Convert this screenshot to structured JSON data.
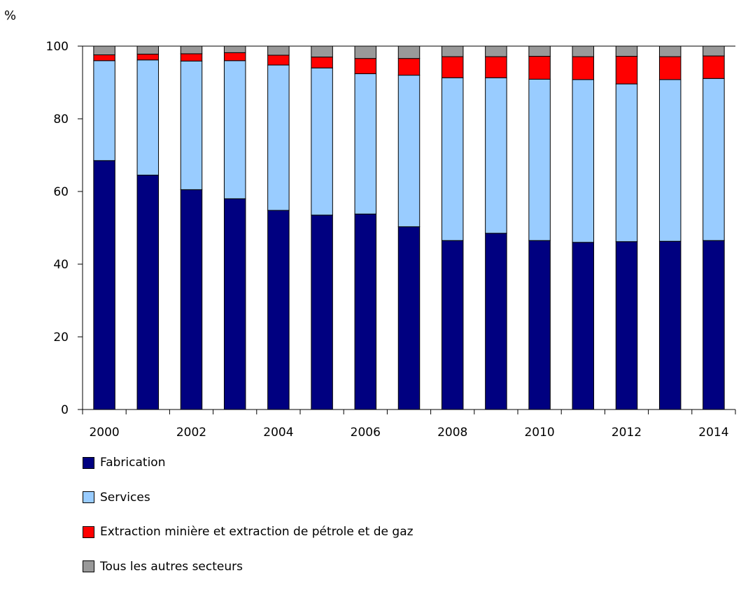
{
  "chart_data": {
    "type": "bar",
    "stacked": true,
    "unit_label": "%",
    "title": "",
    "xlabel": "",
    "ylabel": "%",
    "ylim": [
      0,
      100
    ],
    "y_ticks": [
      0,
      20,
      40,
      60,
      80,
      100
    ],
    "grid": false,
    "legend_position": "bottom-left",
    "categories": [
      "2000",
      "2001",
      "2002",
      "2003",
      "2004",
      "2005",
      "2006",
      "2007",
      "2008",
      "2009",
      "2010",
      "2011",
      "2012",
      "2013",
      "2014"
    ],
    "x_tick_labels": [
      "2000",
      "",
      "2002",
      "",
      "2004",
      "",
      "2006",
      "",
      "2008",
      "",
      "2010",
      "",
      "2012",
      "",
      "2014"
    ],
    "series": [
      {
        "name": "Fabrication",
        "color": "#000080",
        "values": [
          68.5,
          64.5,
          60.5,
          58.0,
          54.8,
          53.5,
          53.8,
          50.3,
          46.5,
          48.5,
          46.5,
          46.0,
          46.2,
          46.3,
          46.5
        ]
      },
      {
        "name": "Services",
        "color": "#99ccff",
        "values": [
          27.5,
          31.7,
          35.4,
          38.0,
          40.0,
          40.5,
          38.6,
          41.7,
          44.8,
          42.8,
          44.4,
          44.8,
          43.4,
          44.5,
          44.6
        ]
      },
      {
        "name": "Extraction minière et extraction de pétrole et de gaz",
        "color": "#ff0000",
        "values": [
          1.6,
          1.6,
          2.0,
          2.2,
          2.7,
          3.0,
          4.2,
          4.6,
          5.8,
          5.8,
          6.3,
          6.3,
          7.6,
          6.3,
          6.2
        ]
      },
      {
        "name": "Tous les autres secteurs",
        "color": "#999999",
        "values": [
          2.4,
          2.2,
          2.1,
          1.8,
          2.5,
          3.0,
          3.4,
          3.4,
          2.9,
          2.9,
          2.8,
          2.9,
          2.8,
          2.9,
          2.7
        ]
      }
    ]
  }
}
